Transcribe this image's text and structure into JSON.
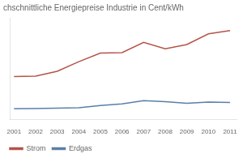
{
  "chart_data": {
    "type": "line",
    "title": "chschnittliche Energiepreise Industrie in Cent/kWh",
    "x": [
      2001,
      2002,
      2003,
      2004,
      2005,
      2006,
      2007,
      2008,
      2009,
      2010,
      2011
    ],
    "series": [
      {
        "name": "Strom",
        "color": "#b5534a",
        "values": [
          5.0,
          5.05,
          5.5,
          6.4,
          7.2,
          7.25,
          8.2,
          7.6,
          8.0,
          9.0,
          9.3
        ]
      },
      {
        "name": "Erdgas",
        "color": "#5a7fa8",
        "values": [
          2.0,
          2.02,
          2.05,
          2.1,
          2.3,
          2.45,
          2.75,
          2.65,
          2.5,
          2.62,
          2.58
        ]
      }
    ],
    "xlim": [
      2000.8,
      2011.3
    ],
    "xticks": [
      2001,
      2002,
      2003,
      2004,
      2005,
      2006,
      2007,
      2008,
      2009,
      2010,
      2011
    ],
    "ylim": [
      1.0,
      10.5
    ],
    "grid": false,
    "legend": "bottom",
    "tick_labels": "x"
  }
}
